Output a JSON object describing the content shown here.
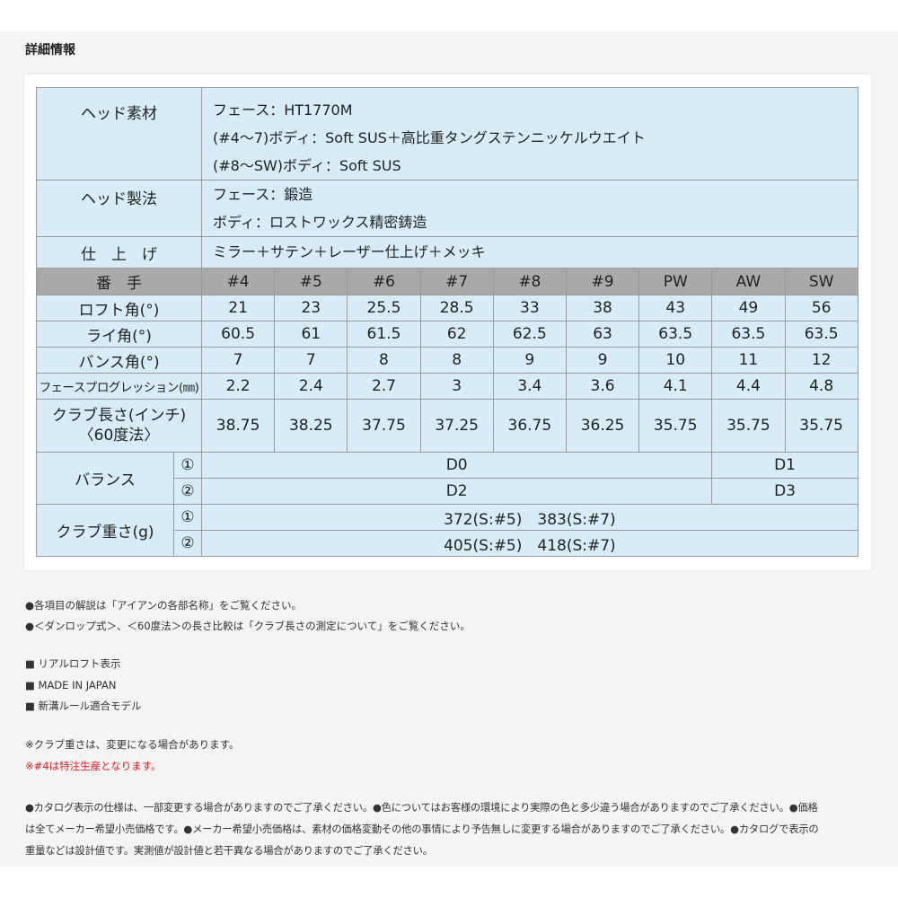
{
  "title": "詳細情報",
  "head_material": {
    "label": "ヘッド素材",
    "lines": [
      "フェース：HT1770M",
      "(#4〜7)ボディ：Soft SUS＋高比重タングステンニッケルウエイト",
      "(#8〜SW)ボディ：Soft SUS"
    ]
  },
  "head_method": {
    "label": "ヘッド製法",
    "lines": [
      "フェース：鍛造",
      "ボディ：ロストワックス精密鋳造"
    ]
  },
  "finish": {
    "label": "仕　上　げ",
    "value": "ミラー＋サテン＋レーザー仕上げ＋メッキ"
  },
  "spec": {
    "header": {
      "label": "番　手",
      "values": [
        "#4",
        "#5",
        "#6",
        "#7",
        "#8",
        "#9",
        "PW",
        "AW",
        "SW"
      ]
    },
    "rows": [
      {
        "label": "ロフト角(°)",
        "values": [
          "21",
          "23",
          "25.5",
          "28.5",
          "33",
          "38",
          "43",
          "49",
          "56"
        ]
      },
      {
        "label": "ライ角(°)",
        "values": [
          "60.5",
          "61",
          "61.5",
          "62",
          "62.5",
          "63",
          "63.5",
          "63.5",
          "63.5"
        ]
      },
      {
        "label": "バンス角(°)",
        "values": [
          "7",
          "7",
          "8",
          "8",
          "9",
          "9",
          "10",
          "11",
          "12"
        ]
      },
      {
        "label": "フェースプログレッション(㎜)",
        "values": [
          "2.2",
          "2.4",
          "2.7",
          "3",
          "3.4",
          "3.6",
          "4.1",
          "4.4",
          "4.8"
        ]
      }
    ],
    "length": {
      "label1": "クラブ長さ(インチ)",
      "label2": "〈60度法〉",
      "values": [
        "38.75",
        "38.25",
        "37.75",
        "37.25",
        "36.75",
        "36.25",
        "35.75",
        "35.75",
        "35.75"
      ]
    }
  },
  "balance": {
    "label": "バランス",
    "rows": [
      {
        "marker": "①",
        "a": "D0",
        "b": "D1"
      },
      {
        "marker": "②",
        "a": "D2",
        "b": "D3"
      }
    ]
  },
  "weight": {
    "label": "クラブ重さ(g)",
    "rows": [
      {
        "marker": "①",
        "value": "372(S:#5)　383(S:#7)"
      },
      {
        "marker": "②",
        "value": "405(S:#5)　418(S:#7)"
      }
    ]
  },
  "notes": {
    "links": [
      "●各項目の解説は「アイアンの各部名称」をご覧ください。",
      "●＜ダンロップ式＞、＜60度法＞の長さ比較は「クラブ長さの測定について」をご覧ください。"
    ],
    "features": [
      "■ リアルロフト表示",
      "■ MADE IN JAPAN",
      "■ 新溝ルール適合モデル"
    ],
    "caution": "※クラブ重さは、変更になる場合があります。",
    "caution_red": "※#4は特注生産となります。",
    "disclaimer": [
      "●カタログ表示の仕様は、一部変更する場合がありますのでご了承ください。●色についてはお客様の環境により実際の色と多少違う場合がありますのでご了承ください。●価格",
      "は全てメーカー希望小売価格です。●メーカー希望小売価格は、素材の価格変動その他の事情により予告無しに変更する場合がありますのでご了承ください。●カタログで表示の",
      "重量などは設計値です。実測値が設計値と若干異なる場合がありますのでご了承ください。"
    ]
  },
  "colors": {
    "table_bg": "#d7ecf6",
    "header_bg": "#a9a9a9",
    "red": "#e02020"
  }
}
